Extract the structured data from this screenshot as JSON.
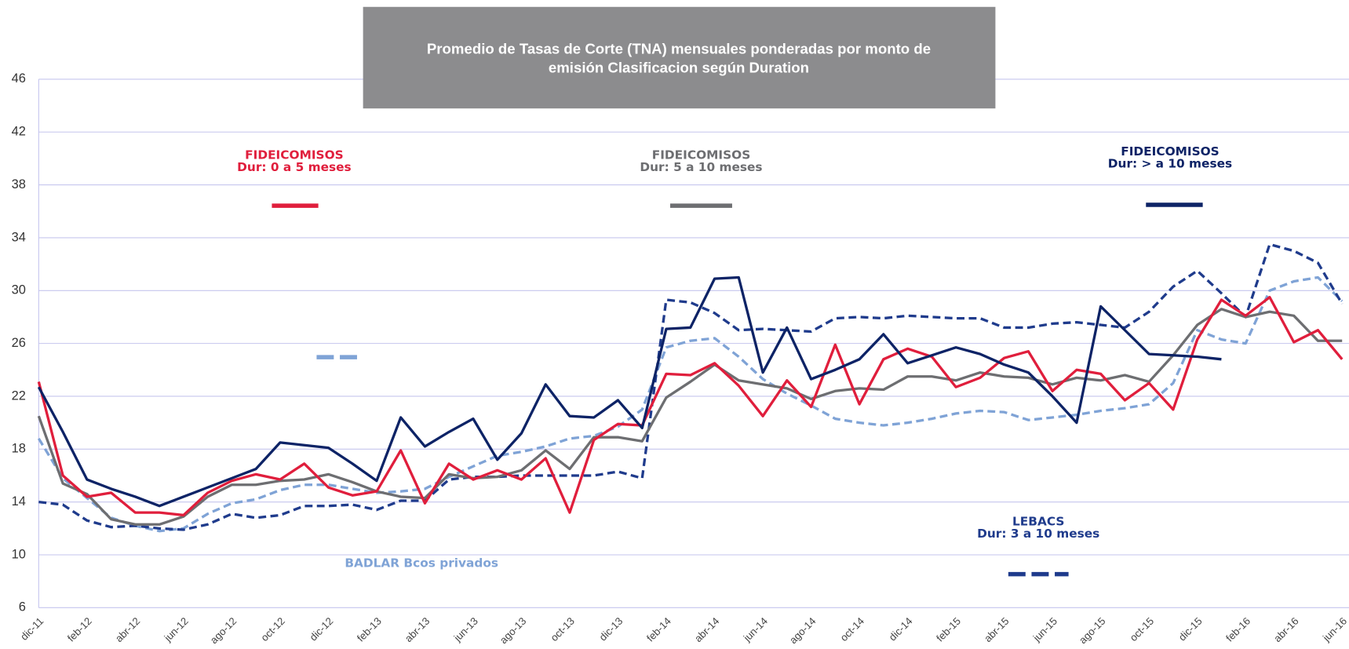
{
  "chart_data": {
    "type": "line",
    "title": "Promedio de Tasas de Corte (TNA) mensuales ponderadas por monto de emisión Clasificacion según Duration",
    "categories": [
      "dic-11",
      null,
      "feb-12",
      null,
      "abr-12",
      null,
      "jun-12",
      null,
      "ago-12",
      null,
      "oct-12",
      null,
      "dic-12",
      null,
      "feb-13",
      null,
      "abr-13",
      null,
      "jun-13",
      null,
      "ago-13",
      null,
      "oct-13",
      null,
      "dic-13",
      null,
      "feb-14",
      null,
      "abr-14",
      null,
      "jun-14",
      null,
      "ago-14",
      null,
      "oct-14",
      null,
      "dic-14",
      null,
      "feb-15",
      null,
      "abr-15",
      null,
      "jun-15",
      null,
      "ago-15",
      null,
      "oct-15",
      null,
      "dic-15",
      null,
      "feb-16",
      null,
      "abr-16",
      null,
      "jun-16"
    ],
    "ylim": [
      6,
      46
    ],
    "yticks": [
      6,
      10,
      14,
      18,
      22,
      26,
      30,
      34,
      38,
      42,
      46
    ],
    "grid": true,
    "series": [
      {
        "name": "FIDEICOMISOS",
        "subtitle": "Dur: 0 a 5 meses",
        "color": "#e01e3c",
        "dash": false,
        "values": [
          23.1,
          16.0,
          14.4,
          14.7,
          13.2,
          13.2,
          13.0,
          14.7,
          15.6,
          16.1,
          15.7,
          16.9,
          15.1,
          14.5,
          14.8,
          17.9,
          13.9,
          16.9,
          15.7,
          16.4,
          15.7,
          17.3,
          13.2,
          18.7,
          19.9,
          19.8,
          23.7,
          23.6,
          24.5,
          22.8,
          20.5,
          23.2,
          21.2,
          25.9,
          21.4,
          24.8,
          25.6,
          25.0,
          22.7,
          23.4,
          24.9,
          25.4,
          22.4,
          24.0,
          23.7,
          21.7,
          23.0,
          21.0,
          26.3,
          29.3,
          28.1,
          29.5,
          26.1,
          27.0,
          24.8
        ]
      },
      {
        "name": "FIDEICOMISOS",
        "subtitle": "Dur: 5 a 10 meses",
        "color": "#6d6e71",
        "dash": false,
        "values": [
          20.5,
          15.4,
          14.6,
          12.7,
          12.3,
          12.3,
          12.9,
          14.4,
          15.3,
          15.3,
          15.6,
          15.7,
          16.1,
          15.5,
          14.8,
          14.4,
          14.3,
          16.1,
          15.8,
          15.9,
          16.4,
          17.9,
          16.5,
          18.9,
          18.9,
          18.6,
          21.9,
          23.1,
          24.4,
          23.2,
          22.9,
          22.6,
          21.8,
          22.4,
          22.6,
          22.5,
          23.5,
          23.5,
          23.2,
          23.8,
          23.5,
          23.4,
          22.9,
          23.4,
          23.2,
          23.6,
          23.1,
          25.1,
          27.4,
          28.6,
          28.0,
          28.4,
          28.1,
          26.2,
          26.2
        ]
      },
      {
        "name": "FIDEICOMISOS",
        "subtitle": "Dur: > a 10 meses",
        "color": "#0d2366",
        "dash": false,
        "values": [
          22.7,
          19.3,
          15.7,
          15.0,
          14.4,
          13.7,
          14.4,
          15.1,
          15.8,
          16.5,
          18.5,
          18.3,
          18.1,
          16.9,
          15.6,
          20.4,
          18.2,
          19.3,
          20.3,
          17.2,
          19.2,
          22.9,
          20.5,
          20.4,
          21.7,
          19.6,
          27.1,
          27.2,
          30.9,
          31.0,
          23.8,
          27.2,
          23.3,
          24.0,
          24.8,
          26.7,
          24.5,
          25.1,
          25.7,
          25.2,
          24.4,
          23.8,
          22.0,
          20.0,
          28.8,
          27.0,
          25.2,
          25.1,
          25.0,
          24.8,
          null,
          null,
          null,
          null,
          null
        ]
      },
      {
        "name": "LEBACS",
        "subtitle": "Dur: 3 a 10 meses",
        "color": "#1f3b8c",
        "dash": true,
        "values": [
          14.0,
          13.8,
          12.6,
          12.1,
          12.2,
          12.0,
          11.9,
          12.3,
          13.1,
          12.8,
          13.0,
          13.7,
          13.7,
          13.8,
          13.4,
          14.1,
          14.1,
          15.7,
          15.9,
          15.9,
          16.0,
          16.0,
          16.0,
          16.0,
          16.3,
          15.8,
          29.3,
          29.1,
          28.3,
          27.0,
          27.1,
          27.0,
          26.9,
          27.9,
          28.0,
          27.9,
          28.1,
          28.0,
          27.9,
          27.9,
          27.2,
          27.2,
          27.5,
          27.6,
          27.4,
          27.2,
          28.4,
          30.3,
          31.5,
          29.8,
          28.0,
          33.5,
          33.0,
          32.1,
          29.0
        ]
      },
      {
        "name": "BADLAR Bcos privados",
        "color": "#7fa3d6",
        "dash": true,
        "values": [
          18.8,
          15.8,
          14.3,
          12.8,
          12.2,
          11.8,
          12.0,
          13.1,
          13.9,
          14.2,
          14.9,
          15.3,
          15.3,
          15.0,
          14.7,
          14.8,
          15.0,
          15.9,
          16.7,
          17.5,
          17.8,
          18.2,
          18.8,
          19.0,
          19.7,
          21.0,
          25.7,
          26.2,
          26.4,
          25.0,
          23.3,
          22.2,
          21.3,
          20.3,
          20.0,
          19.8,
          20.0,
          20.3,
          20.7,
          20.9,
          20.8,
          20.2,
          20.4,
          20.6,
          20.9,
          21.1,
          21.4,
          23.0,
          27.0,
          26.3,
          26.0,
          30.0,
          30.7,
          31.0,
          29.2
        ]
      }
    ]
  }
}
